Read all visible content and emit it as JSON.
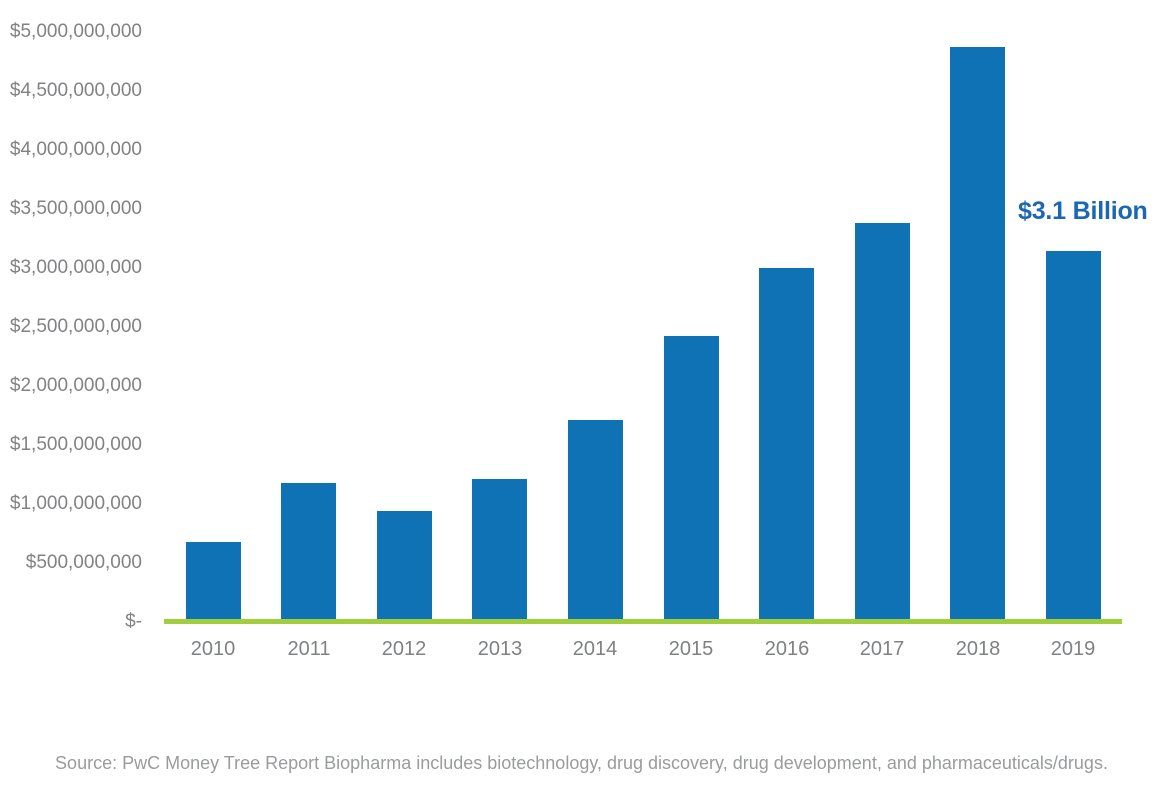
{
  "chart_data": {
    "type": "bar",
    "title": "",
    "xlabel": "",
    "ylabel": "",
    "grid": false,
    "legend": "none",
    "categories": [
      "2010",
      "2011",
      "2012",
      "2013",
      "2014",
      "2015",
      "2016",
      "2017",
      "2018",
      "2019"
    ],
    "values": [
      680000000,
      1180000000,
      940000000,
      1210000000,
      1710000000,
      2420000000,
      3000000000,
      3380000000,
      4870000000,
      3140000000
    ],
    "ylim": [
      0,
      5000000000
    ],
    "y_ticks": [
      {
        "label": "$5,000,000,000",
        "value": 5000000000
      },
      {
        "label": "$4,500,000,000",
        "value": 4500000000
      },
      {
        "label": "$4,000,000,000",
        "value": 4000000000
      },
      {
        "label": "$3,500,000,000",
        "value": 3500000000
      },
      {
        "label": "$3,000,000,000",
        "value": 3000000000
      },
      {
        "label": "$2,500,000,000",
        "value": 2500000000
      },
      {
        "label": "$2,000,000,000",
        "value": 2000000000
      },
      {
        "label": "$1,500,000,000",
        "value": 1500000000
      },
      {
        "label": "$1,000,000,000",
        "value": 1000000000
      },
      {
        "label": "$500,000,000",
        "value": 500000000
      },
      {
        "label": "$-",
        "value": 0
      }
    ],
    "annotation": {
      "text": "$3.1 Billion",
      "color": "#1b67b2",
      "target_category": "2019"
    },
    "bar_color": "#0f72b5",
    "axis_line_color": "#a0ce3c",
    "tick_label_color": "#818284",
    "source_note": "Source: PwC Money Tree Report Biopharma includes biotechnology, drug discovery, drug development, and pharmaceuticals/drugs."
  }
}
